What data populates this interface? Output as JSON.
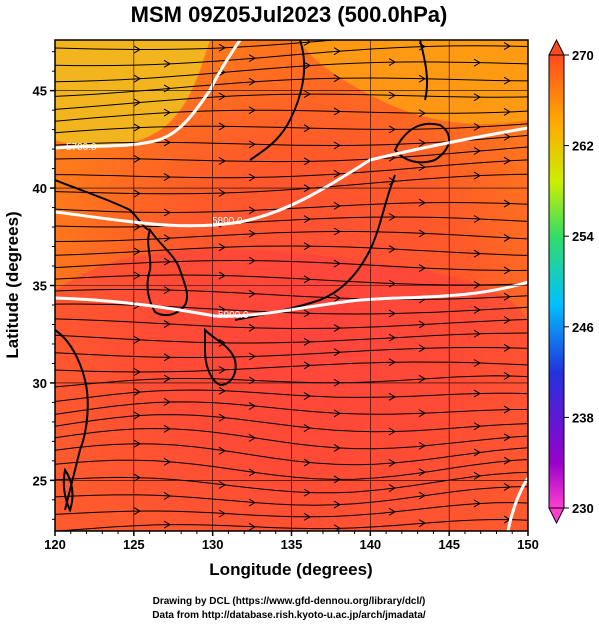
{
  "title": "MSM 09Z05Jul2023 (500.0hPa)",
  "x_axis": {
    "label": "Longitude (degrees)",
    "ticks": [
      "120",
      "125",
      "130",
      "135",
      "140",
      "145",
      "150"
    ]
  },
  "y_axis": {
    "label": "Latitude  (degrees)",
    "ticks": [
      "25",
      "30",
      "35",
      "40",
      "45"
    ]
  },
  "colorbar": {
    "ticks": [
      "230",
      "238",
      "246",
      "254",
      "262",
      "270"
    ],
    "colors": [
      "#ff3fd0",
      "#9900cc",
      "#2233dd",
      "#00c0ff",
      "#33dd66",
      "#ccee00",
      "#ffaa00",
      "#ff4a20"
    ]
  },
  "contours": [
    {
      "label": "5700.0"
    },
    {
      "label": "5800.0"
    },
    {
      "label": "5900.0"
    }
  ],
  "credits": {
    "line1": "Drawing by DCL (https://www.gfd-dennou.org/library/dcl/)",
    "line2": "Data from http://database.rish.kyoto-u.ac.jp/arch/jmadata/"
  },
  "chart_data": {
    "type": "heatmap",
    "title": "MSM 09Z05Jul2023 (500.0hPa)",
    "xlabel": "Longitude (degrees)",
    "ylabel": "Latitude  (degrees)",
    "xlim": [
      120,
      150
    ],
    "ylim": [
      22.4,
      47.6
    ],
    "colorbar_range": [
      230,
      270
    ],
    "colorbar_ticks": [
      230,
      238,
      246,
      254,
      262,
      270
    ],
    "contour_levels": [
      5700,
      5800,
      5900
    ],
    "overlays": [
      "streamlines",
      "coastlines",
      "geopotential height contours"
    ],
    "grid": true
  }
}
